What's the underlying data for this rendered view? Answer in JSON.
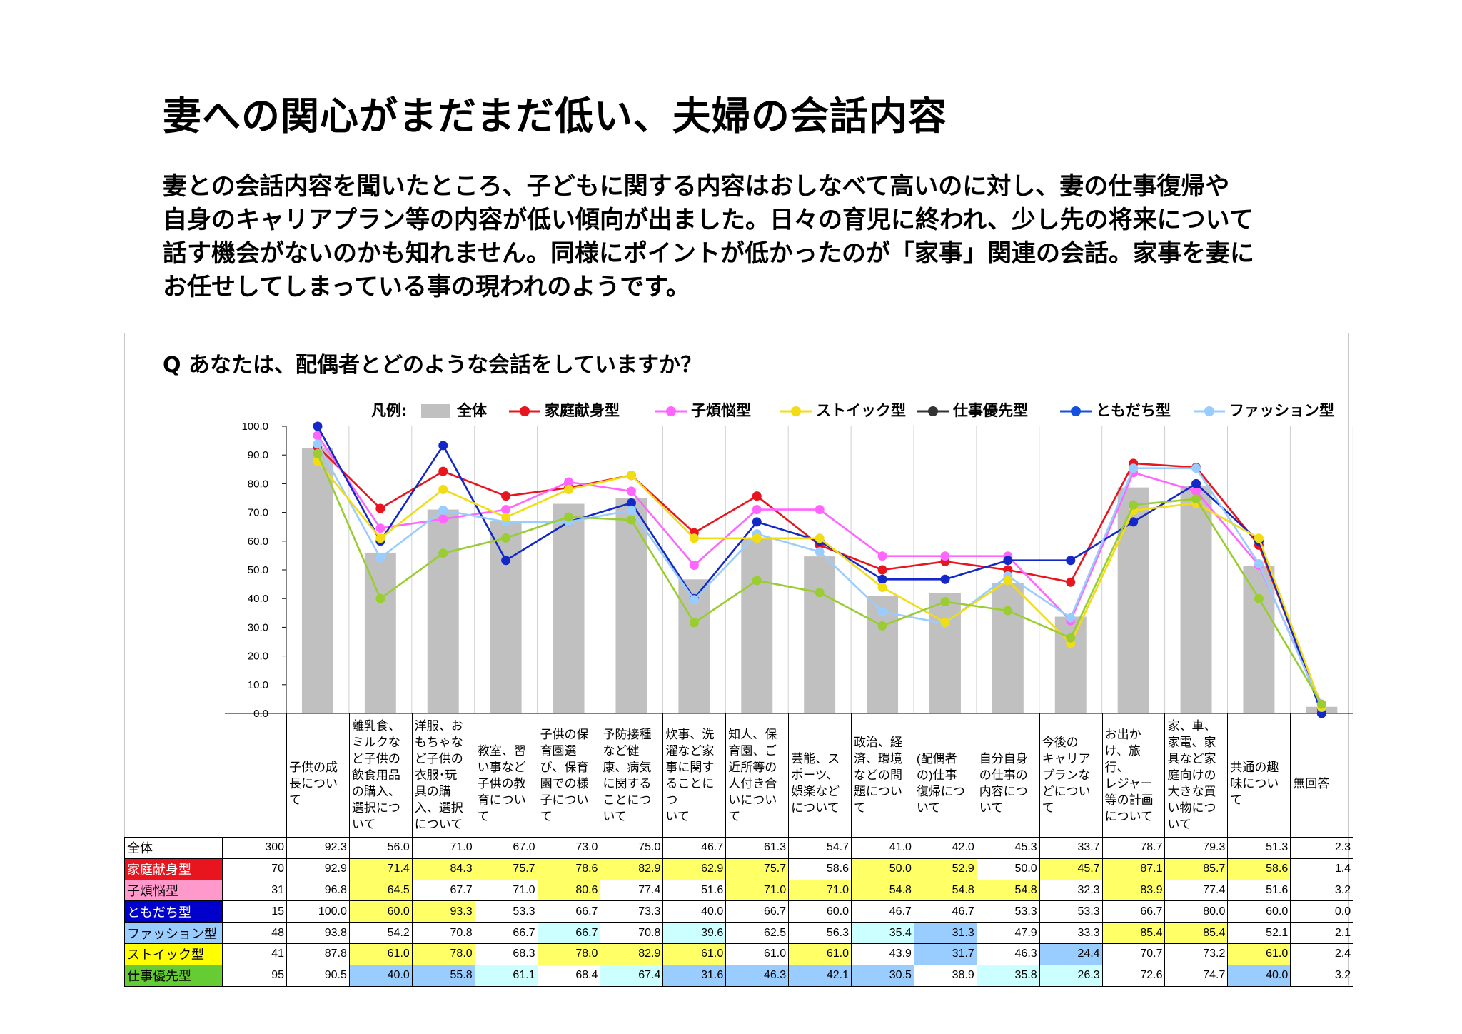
{
  "page": {
    "title": "妻への関心がまだまだ低い、夫婦の会話内容",
    "lead": [
      "妻との会話内容を聞いたところ、子どもに関する内容はおしなべて高いのに対し、妻の仕事復帰や",
      "自身のキャリアプラン等の内容が低い傾向が出ました。日々の育児に終われ、少し先の将来について",
      "話す機会がないのかも知れません。同様にポイントが低かったのが「家事」関連の会話。家事を妻に",
      "お任せしてしまっている事の現われのようです。"
    ],
    "question": "Q あなたは、配偶者とどのような会話をしていますか？"
  },
  "chart_data": {
    "type": "bar+line",
    "categories": [
      "子供の成長について",
      "離乳食、ミルクなど子供の飲食用品の購入、選択について",
      "洋服、おもちゃなど子供の衣服･玩具の購入、選択について",
      "教室、習い事など子供の教育について",
      "子供の保育園選び、保育園での様子について",
      "予防接種など健康、病気に関することについて",
      "炊事、洗濯など家事に関することについて",
      "知人、保育園、ご近所等の人付き合いについて",
      "芸能、スポーツ、娯楽などについて",
      "政治、経済、環境などの問題について",
      "(配偶者の)仕事復帰について",
      "自分自身の仕事の内容について",
      "今後のキャリアプランなどについて",
      "お出かけ、旅行、レジャー等の計画について",
      "家、車、家電、家具など家庭向けの大きな買い物について",
      "共通の趣味について",
      "無回答"
    ],
    "category_lines": [
      [
        "",
        "子供の成",
        "長につい",
        "て"
      ],
      [
        "離乳食、",
        "ミルクな",
        "ど子供の",
        "飲食用品",
        "の購入、",
        "選択につ",
        "いて"
      ],
      [
        "洋服、お",
        "もちゃな",
        "ど子供の",
        "衣服･玩",
        "具の購",
        "入、選択",
        "について"
      ],
      [
        "",
        "教室、習",
        "い事など",
        "子供の教",
        "育につい",
        "て"
      ],
      [
        "子供の保",
        "育園選",
        "び、保育",
        "園での様",
        "子につい",
        "て"
      ],
      [
        "予防接種",
        "など健",
        "康、病気",
        "に関する",
        "ことにつ",
        "いて"
      ],
      [
        "炊事、洗",
        "濯など家",
        "事に関す",
        "ることにつ",
        "いて"
      ],
      [
        "知人、保",
        "育園、ご",
        "近所等の",
        "人付き合",
        "いについ",
        "て"
      ],
      [
        "",
        "芸能、ス",
        "ポーツ、",
        "娯楽など",
        "について"
      ],
      [
        "政治、経",
        "済、環境",
        "などの問",
        "題につい",
        "て"
      ],
      [
        "",
        "(配偶者",
        "の)仕事",
        "復帰につ",
        "いて"
      ],
      [
        "",
        "自分自身",
        "の仕事の",
        "内容につ",
        "いて"
      ],
      [
        "今後の",
        "キャリア",
        "プランな",
        "どについ",
        "て"
      ],
      [
        "お出か",
        "け、旅行、",
        "レジャー",
        "等の計画",
        "について"
      ],
      [
        "家、車、",
        "家電、家",
        "具など家",
        "庭向けの",
        "大きな買",
        "い物につ",
        "いて"
      ],
      [
        "",
        "共通の趣",
        "味につい",
        "て"
      ],
      [
        "",
        "無回答"
      ]
    ],
    "y_ticks": [
      "100.0",
      "90.0",
      "80.0",
      "70.0",
      "60.0",
      "50.0",
      "40.0",
      "30.0",
      "20.0",
      "10.0",
      "0.0"
    ],
    "ylim": [
      0,
      100
    ],
    "legend_prefix": "凡例:",
    "legend_position": "top",
    "grid": "vertical category lines",
    "series": [
      {
        "name": "全体",
        "kind": "bar",
        "color": "#c0c0c0",
        "count": "300",
        "values": [
          "92.3",
          "56.0",
          "71.0",
          "67.0",
          "73.0",
          "75.0",
          "46.7",
          "61.3",
          "54.7",
          "41.0",
          "42.0",
          "45.3",
          "33.7",
          "78.7",
          "79.3",
          "51.3",
          "2.3"
        ]
      },
      {
        "name": "家庭献身型",
        "kind": "line",
        "color": "#e8141e",
        "count": "70",
        "label_bg": "#e8141e",
        "label_color": "#ffffff",
        "values": [
          "92.9",
          "71.4",
          "84.3",
          "75.7",
          "78.6",
          "82.9",
          "62.9",
          "75.7",
          "58.6",
          "50.0",
          "52.9",
          "50.0",
          "45.7",
          "87.1",
          "85.7",
          "58.6",
          "1.4"
        ],
        "highlights": [
          "",
          "y",
          "y",
          "y",
          "y",
          "y",
          "y",
          "y",
          "",
          "y",
          "y",
          "",
          "y",
          "y",
          "y",
          "y",
          ""
        ]
      },
      {
        "name": "子煩悩型",
        "kind": "line",
        "color": "#ff66ff",
        "count": "31",
        "label_bg": "#ff99cc",
        "label_color": "#000000",
        "values": [
          "96.8",
          "64.5",
          "67.7",
          "71.0",
          "80.6",
          "77.4",
          "51.6",
          "71.0",
          "71.0",
          "54.8",
          "54.8",
          "54.8",
          "32.3",
          "83.9",
          "77.4",
          "51.6",
          "3.2"
        ],
        "highlights": [
          "",
          "y",
          "",
          "",
          "y",
          "",
          "",
          "y",
          "y",
          "y",
          "y",
          "y",
          "",
          "y",
          "",
          "",
          ""
        ]
      },
      {
        "name": "ともだち型",
        "kind": "line",
        "color": "#1428c8",
        "count": "15",
        "label_bg": "#0000cc",
        "label_color": "#ffffff",
        "values": [
          "100.0",
          "60.0",
          "93.3",
          "53.3",
          "66.7",
          "73.3",
          "40.0",
          "66.7",
          "60.0",
          "46.7",
          "46.7",
          "53.3",
          "53.3",
          "66.7",
          "80.0",
          "60.0",
          "0.0"
        ],
        "highlights": [
          "",
          "y",
          "y",
          "",
          "",
          "",
          "",
          "",
          "",
          "",
          "",
          "",
          "",
          "",
          "",
          "",
          ""
        ]
      },
      {
        "name": "ファッション型",
        "kind": "line",
        "color": "#99ccff",
        "count": "48",
        "label_bg": "#99ccff",
        "label_color": "#000000",
        "values": [
          "93.8",
          "54.2",
          "70.8",
          "66.7",
          "66.7",
          "70.8",
          "39.6",
          "62.5",
          "56.3",
          "35.4",
          "31.3",
          "47.9",
          "33.3",
          "85.4",
          "85.4",
          "52.1",
          "2.1"
        ],
        "highlights": [
          "",
          "",
          "",
          "",
          "c",
          "",
          "c",
          "",
          "",
          "c",
          "b",
          "",
          "",
          "y",
          "y",
          "",
          ""
        ]
      },
      {
        "name": "ストイック型",
        "kind": "line",
        "color": "#f2dc14",
        "count": "41",
        "label_bg": "#ffff00",
        "label_color": "#000000",
        "values": [
          "87.8",
          "61.0",
          "78.0",
          "68.3",
          "78.0",
          "82.9",
          "61.0",
          "61.0",
          "61.0",
          "43.9",
          "31.7",
          "46.3",
          "24.4",
          "70.7",
          "73.2",
          "61.0",
          "2.4"
        ],
        "highlights": [
          "",
          "y",
          "y",
          "",
          "y",
          "y",
          "y",
          "",
          "y",
          "",
          "b",
          "",
          "b",
          "",
          "",
          "y",
          ""
        ]
      },
      {
        "name": "仕事優先型",
        "kind": "line",
        "color": "#9acd32",
        "count": "95",
        "label_bg": "#66cc33",
        "label_color": "#000000",
        "values": [
          "90.5",
          "40.0",
          "55.8",
          "61.1",
          "68.4",
          "67.4",
          "31.6",
          "46.3",
          "42.1",
          "30.5",
          "38.9",
          "35.8",
          "26.3",
          "72.6",
          "74.7",
          "40.0",
          "3.2"
        ],
        "highlights": [
          "",
          "b",
          "b",
          "c",
          "",
          "c",
          "b",
          "b",
          "b",
          "b",
          "",
          "c",
          "c",
          "",
          "",
          "b",
          ""
        ]
      }
    ],
    "legend": [
      {
        "name": "全体",
        "marker": "bar",
        "color": "#c0c0c0"
      },
      {
        "name": "家庭献身型",
        "marker": "line",
        "color": "#e8141e"
      },
      {
        "name": "子煩悩型",
        "marker": "line",
        "color": "#ff66ff"
      },
      {
        "name": "ストイック型",
        "marker": "line",
        "color": "#f2dc14"
      },
      {
        "name": "仕事優先型",
        "marker": "line",
        "color": "#333333"
      },
      {
        "name": "ともだち型",
        "marker": "line",
        "color": "#1450dc"
      },
      {
        "name": "ファッション型",
        "marker": "line",
        "color": "#99ccff"
      }
    ]
  }
}
